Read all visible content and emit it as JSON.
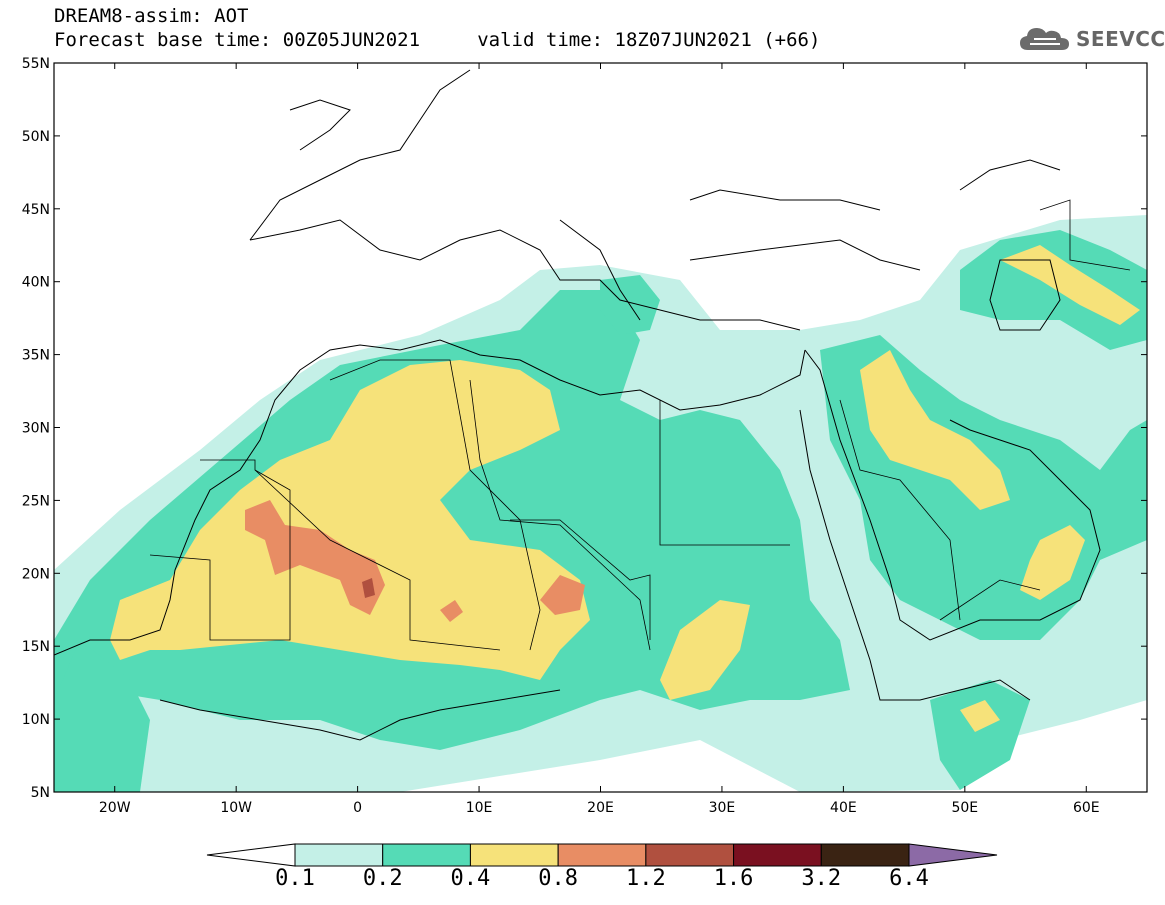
{
  "header": {
    "line1": "DREAM8-assim: AOT",
    "line2": "Forecast base time: 00Z05JUN2021     valid time: 18Z07JUN2021 (+66)"
  },
  "logo": {
    "icon": "cloud-icon",
    "text": "SEEVCCC"
  },
  "map": {
    "lat_labels": [
      "55N",
      "50N",
      "45N",
      "40N",
      "35N",
      "30N",
      "25N",
      "20N",
      "15N",
      "10N",
      "5N"
    ],
    "lon_labels": [
      "20W",
      "10W",
      "0",
      "10E",
      "20E",
      "30E",
      "40E",
      "50E",
      "60E"
    ],
    "lat_range": [
      5,
      55
    ],
    "lon_range": [
      -25,
      65
    ],
    "field": "AOT"
  },
  "colorbar": {
    "labels": [
      "0.1",
      "0.2",
      "0.4",
      "0.8",
      "1.2",
      "1.6",
      "3.2",
      "6.4"
    ],
    "colors": [
      "#ffffff",
      "#c4f0e7",
      "#55dbb6",
      "#f6e27a",
      "#e88d64",
      "#b0503f",
      "#7a1020",
      "#3a2313",
      "#8c6aa6"
    ]
  }
}
